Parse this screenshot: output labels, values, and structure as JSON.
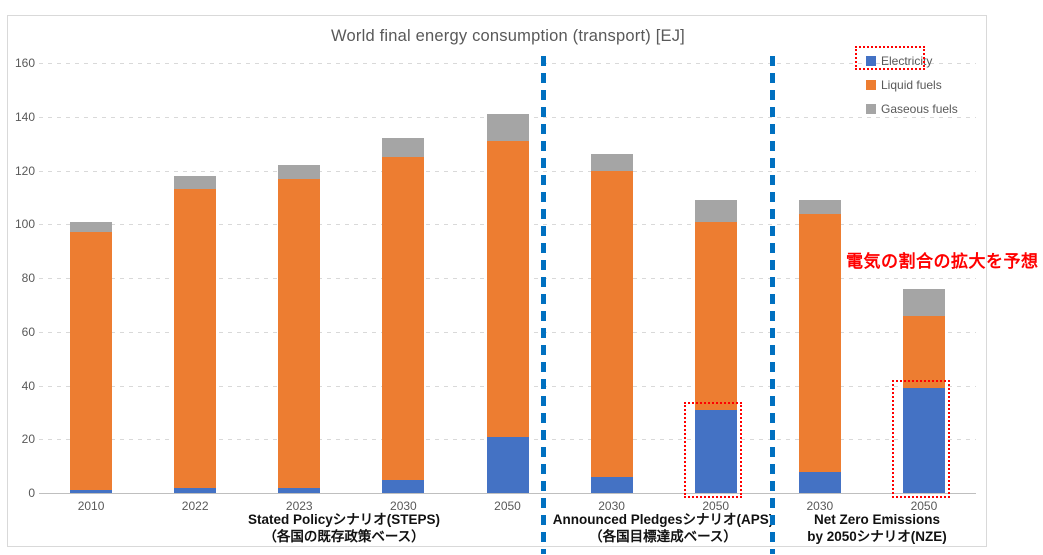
{
  "title": "World final energy consumption (transport) [EJ]",
  "colors": {
    "electricity": "#4472C4",
    "liquid_fuels": "#ED7D31",
    "gaseous_fuels": "#A5A5A5",
    "divider_blue": "#0070C0",
    "annotation_red": "#FF0000",
    "axis_text_gray": "#595959",
    "gridline_gray": "#D9D9D9"
  },
  "chart_data": {
    "type": "bar",
    "stacked": true,
    "title": "World final energy consumption (transport) [EJ]",
    "ylabel": "",
    "xlabel": "",
    "ylim": [
      0,
      160
    ],
    "yticks": [
      0,
      20,
      40,
      60,
      80,
      100,
      120,
      140,
      160
    ],
    "grid": "dashed-horizontal",
    "legend_position": "top-right-inside",
    "categories": [
      "2010",
      "2022",
      "2023",
      "2030",
      "2050",
      "2030",
      "2050",
      "2030",
      "2050"
    ],
    "series": [
      {
        "name": "Electricity",
        "color": "#4472C4",
        "values": [
          1,
          2,
          2,
          5,
          21,
          6,
          31,
          8,
          39
        ]
      },
      {
        "name": "Liquid fuels",
        "color": "#ED7D31",
        "values": [
          96,
          111,
          115,
          120,
          110,
          114,
          70,
          96,
          27
        ]
      },
      {
        "name": "Gaseous fuels",
        "color": "#A5A5A5",
        "values": [
          4,
          5,
          5,
          7,
          10,
          6,
          8,
          5,
          10
        ]
      }
    ],
    "totals": [
      101,
      118,
      122,
      132,
      141,
      126,
      109,
      109,
      76
    ],
    "groups": [
      {
        "line1": "Stated Policyシナリオ(STEPS)",
        "line2": "（各国の既存政策ベース）"
      },
      {
        "line1": "Announced Pledgesシナリオ(APS)",
        "line2": "（各国目標達成ベース）"
      },
      {
        "line1": "Net Zero Emissions",
        "line2": "by 2050シナリオ(NZE)"
      }
    ]
  },
  "legend": {
    "items": [
      "Electricity",
      "Liquid fuels",
      "Gaseous fuels"
    ]
  },
  "annotation": {
    "text": "電気の割合の拡大を予想"
  },
  "highlights": [
    "legend-electricity",
    "aps-2050-electricity-segment",
    "nze-2050-electricity-segment"
  ]
}
